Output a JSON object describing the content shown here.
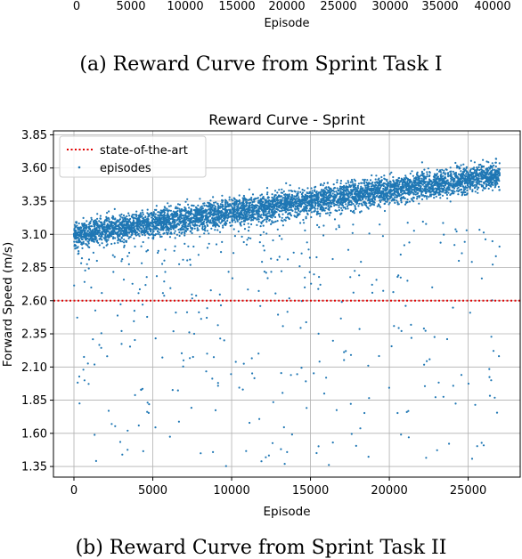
{
  "top_fragment": {
    "x_ticks": [
      "0",
      "5000",
      "10000",
      "15000",
      "20000",
      "25000",
      "30000",
      "35000",
      "40000"
    ],
    "xlabel": "Episode"
  },
  "captions": {
    "a": "(a) Reward Curve from Sprint Task I",
    "b": "(b) Reward Curve from Sprint Task II"
  },
  "colors": {
    "scatter": "#1f77b4",
    "sota_line": "#e00000",
    "grid": "#b0b0b0"
  },
  "chart_data": {
    "type": "scatter",
    "title": "Reward Curve - Sprint",
    "xlabel": "Episode",
    "ylabel": "Forward Speed (m/s)",
    "xlim": [
      -1300,
      28300
    ],
    "ylim": [
      1.27,
      3.88
    ],
    "x_ticks": [
      0,
      5000,
      10000,
      15000,
      20000,
      25000
    ],
    "x_tick_labels": [
      "0",
      "5000",
      "10000",
      "15000",
      "20000",
      "25000"
    ],
    "y_ticks": [
      1.35,
      1.6,
      1.85,
      2.1,
      2.35,
      2.6,
      2.85,
      3.1,
      3.35,
      3.6,
      3.85
    ],
    "y_tick_labels": [
      "1.35",
      "1.60",
      "1.85",
      "2.10",
      "2.35",
      "2.60",
      "2.85",
      "3.10",
      "3.35",
      "3.60",
      "3.85"
    ],
    "grid": true,
    "legend_position": "top-left",
    "series": [
      {
        "name": "episodes",
        "kind": "scatter",
        "episode_range": [
          0,
          27000
        ],
        "speed_trend_start": 3.1,
        "speed_trend_end": 3.55,
        "band_spread": 0.12,
        "sparse_outlier_range": [
          1.35,
          2.9
        ]
      },
      {
        "name": "state-of-the-art",
        "kind": "hline",
        "y": 2.6
      }
    ]
  }
}
